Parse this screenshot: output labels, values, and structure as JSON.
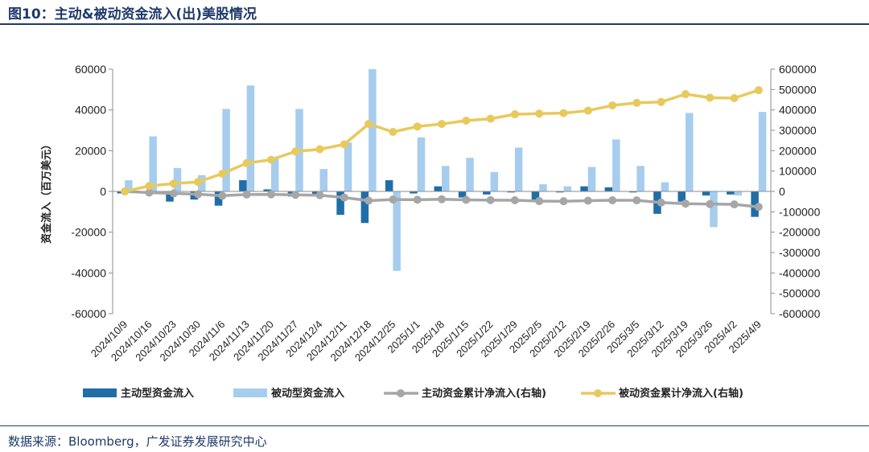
{
  "header": {
    "title": "图10：主动&被动资金流入(出)美股情况"
  },
  "footer": {
    "source": "数据来源：Bloomberg，广发证券发展研究中心"
  },
  "colors": {
    "active": "#1f6ea8",
    "passive": "#a6cdee",
    "active_cum": "#a6a6a6",
    "passive_cum": "#e8c95c",
    "title": "#1f3a6a"
  },
  "chart_data": {
    "type": "bar+line",
    "ylabel": "资金流入（百万美元）",
    "categories": [
      "2024/10/9",
      "2024/10/16",
      "2024/10/23",
      "2024/10/30",
      "2024/11/6",
      "2024/11/13",
      "2024/11/20",
      "2024/11/27",
      "2024/12/4",
      "2024/12/11",
      "2024/12/18",
      "2024/12/25",
      "2025/1/1",
      "2025/1/8",
      "2025/1/15",
      "2025/1/22",
      "2025/1/29",
      "2025/2/5",
      "2025/2/12",
      "2025/2/19",
      "2025/2/26",
      "2025/3/5",
      "2025/3/12",
      "2025/3/19",
      "2025/3/26",
      "2025/4/2",
      "2025/4/9"
    ],
    "y_left": {
      "min": -60000,
      "max": 60000,
      "ticks": [
        "60000",
        "40000",
        "20000",
        "0",
        "-20000",
        "-40000",
        "-60000"
      ]
    },
    "y_right": {
      "min": -600000,
      "max": 600000,
      "ticks": [
        "600000",
        "500000",
        "400000",
        "300000",
        "200000",
        "100000",
        "0",
        "-100000",
        "-200000",
        "-300000",
        "-400000",
        "-500000",
        "-600000"
      ]
    },
    "series": [
      {
        "name": "主动型资金流入",
        "type": "bar",
        "axis": "left",
        "values": [
          -1000,
          -1000,
          -5000,
          -4000,
          -7000,
          5500,
          1000,
          -2500,
          -1500,
          -11500,
          -15500,
          5500,
          -1000,
          2500,
          -3000,
          -1500,
          -500,
          -4000,
          -500,
          2500,
          2000,
          -500,
          -11000,
          -5000,
          -2000,
          -1500,
          -12500
        ]
      },
      {
        "name": "被动型资金流入",
        "type": "bar",
        "axis": "left",
        "values": [
          5500,
          27000,
          11500,
          8000,
          40500,
          52000,
          16500,
          40500,
          11000,
          24000,
          60000,
          -39000,
          26500,
          12500,
          16500,
          9500,
          21500,
          3500,
          2500,
          12000,
          25500,
          12500,
          4500,
          38500,
          -17500,
          -2000,
          39000
        ]
      },
      {
        "name": "主动资金累计净流入(右轴)",
        "type": "line",
        "axis": "right",
        "values": [
          0,
          -6000,
          -10000,
          -14000,
          -21000,
          -15500,
          -14500,
          -17000,
          -18500,
          -30000,
          -45500,
          -40000,
          -41000,
          -38500,
          -41500,
          -43000,
          -43500,
          -47500,
          -48000,
          -45500,
          -43500,
          -44000,
          -55000,
          -60000,
          -62000,
          -63500,
          -76000
        ]
      },
      {
        "name": "被动资金金累计净流入(右轴)",
        "type": "line",
        "axis": "right",
        "values": [
          0,
          27000,
          38500,
          46500,
          87000,
          139000,
          155500,
          196000,
          207000,
          231000,
          331000,
          292000,
          318500,
          331000,
          347500,
          357000,
          378500,
          382000,
          384500,
          396500,
          422000,
          434500,
          439000,
          477500,
          460000,
          458000,
          497000
        ]
      }
    ],
    "legend": [
      "主动型资金流入",
      "被动型资金流入",
      "主动资金累计净流入(右轴)",
      "被动资金金累计净流入(右轴)"
    ],
    "legend_labels": [
      "主动型资金流入",
      "被动型资金流入",
      "主动资金累计净流入(右轴)",
      "被动资金累计净流入(右轴)"
    ],
    "legend_position": "bottom",
    "grid": false
  }
}
